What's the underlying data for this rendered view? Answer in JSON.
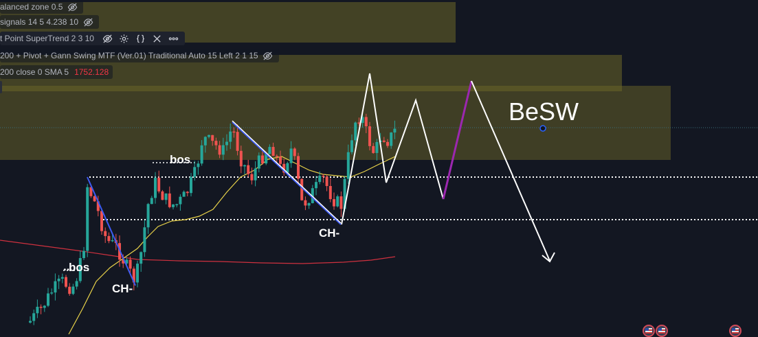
{
  "legend": {
    "row1": "alanced zone 0.5",
    "row2": "signals 14 5 4.238 10",
    "row3": "t Point SuperTrend 2 3 10",
    "row4": "200 + Pivot + Gann Swing MTF (Ver.01) Traditional Auto 15 Left 2 1 15",
    "row5_label": "200 close 0 SMA 5",
    "row5_value": "1752.128"
  },
  "annotations": {
    "besw": "BeSW",
    "bos_left": "bos",
    "bos_left_prefix": "..",
    "bos_top": "bos",
    "ch_left": "CH-",
    "ch_right": "CH-"
  },
  "colors": {
    "background": "#131722",
    "zone": "#6b6628",
    "candle_up": "#26a69a",
    "candle_down": "#ef5350",
    "sma_yellow": "#e8d24a",
    "ma_red": "#d0313f",
    "trend_blue": "#3d5af1",
    "projection_white": "#ffffff",
    "projection_purple": "#9c27b0"
  },
  "icons": [
    "eye-off-icon",
    "gear-icon",
    "source-code-icon",
    "close-icon",
    "more-icon",
    "flag-icon"
  ]
}
